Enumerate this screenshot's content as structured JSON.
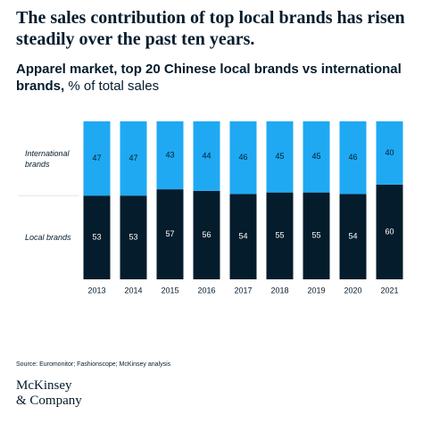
{
  "chart_data": {
    "type": "stacked_bar",
    "title": "The sales contribution of top local brands has risen steadily over the past ten years.",
    "subtitle": "Apparel market, top 20 Chinese local brands vs international brands,",
    "unit": "% of total sales",
    "categories": [
      "2013",
      "2014",
      "2015",
      "2016",
      "2017",
      "2018",
      "2019",
      "2020",
      "2021"
    ],
    "series": [
      {
        "name": "Local brands",
        "color": "#051c2c",
        "label_color": "#ffffff",
        "values": [
          53,
          53,
          57,
          56,
          54,
          55,
          55,
          54,
          60
        ]
      },
      {
        "name": "International brands",
        "color": "#1fa9f2",
        "label_color": "#051c2c",
        "values": [
          47,
          47,
          43,
          44,
          46,
          45,
          45,
          46,
          40
        ]
      }
    ],
    "ylim": [
      0,
      100
    ],
    "source": "Source: Euromonitor; Fashionscope; McKinsey analysis",
    "logo": [
      "McKinsey",
      "& Company"
    ]
  }
}
